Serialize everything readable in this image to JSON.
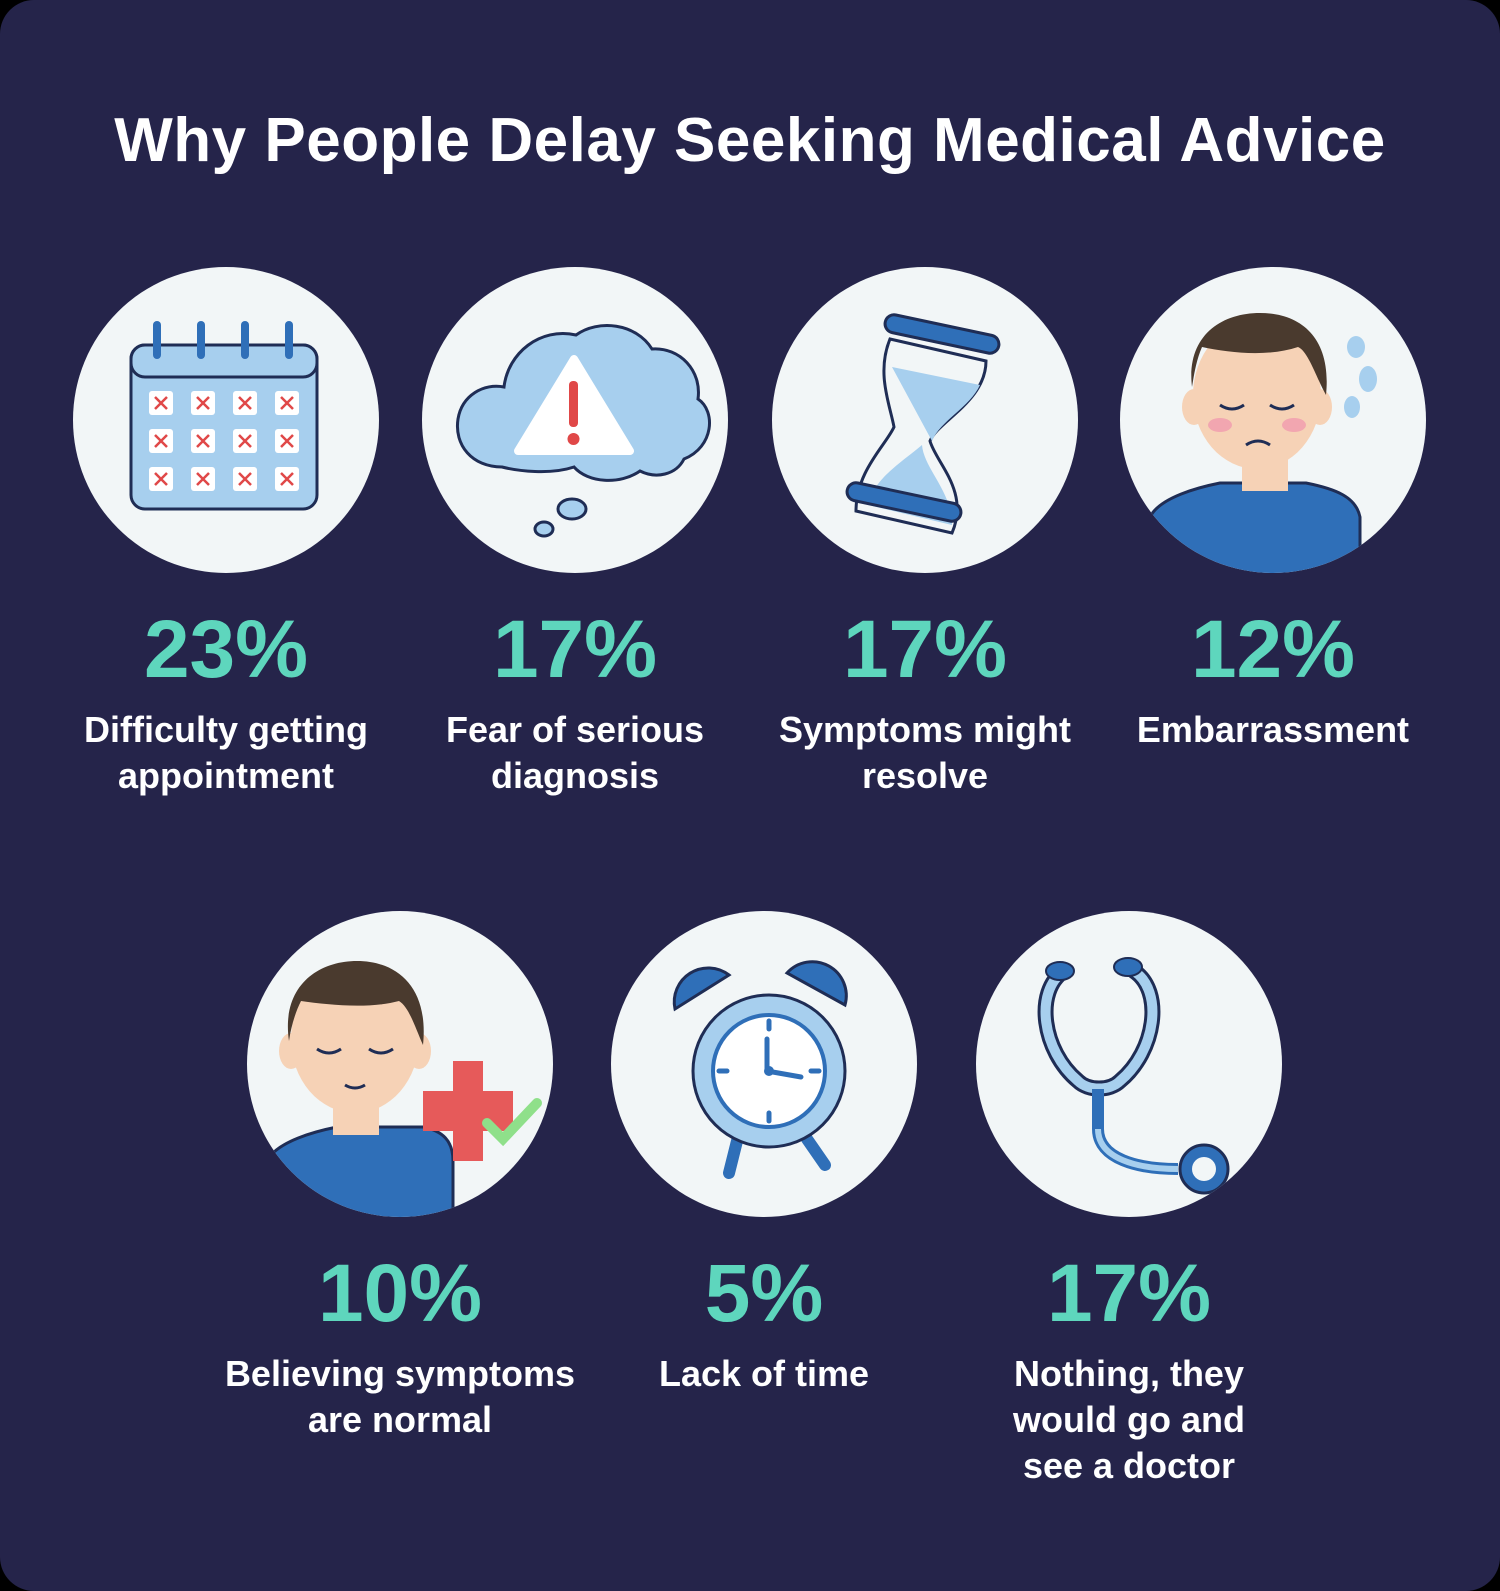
{
  "title": "Why People Delay Seeking Medical Advice",
  "colors": {
    "background": "#25244a",
    "percent": "#5ed6bd",
    "circle": "#f2f6f7",
    "icon_blue": "#2f6fb8",
    "icon_light": "#a7cfee"
  },
  "items": [
    {
      "percent": "23%",
      "value": 23,
      "label": "Difficulty getting appointment",
      "icon": "calendar-icon"
    },
    {
      "percent": "17%",
      "value": 17,
      "label": "Fear of serious diagnosis",
      "icon": "warning-cloud-icon"
    },
    {
      "percent": "17%",
      "value": 17,
      "label": "Symptoms might resolve",
      "icon": "hourglass-icon"
    },
    {
      "percent": "12%",
      "value": 12,
      "label": "Embarrassment",
      "icon": "embarrassed-person-icon"
    },
    {
      "percent": "10%",
      "value": 10,
      "label": "Believing symptoms are normal",
      "icon": "calm-person-health-icon"
    },
    {
      "percent": "5%",
      "value": 5,
      "label": "Lack of time",
      "icon": "alarm-clock-icon"
    },
    {
      "percent": "17%",
      "value": 17,
      "label": "Nothing, they would go and see a doctor",
      "icon": "stethoscope-icon"
    }
  ]
}
